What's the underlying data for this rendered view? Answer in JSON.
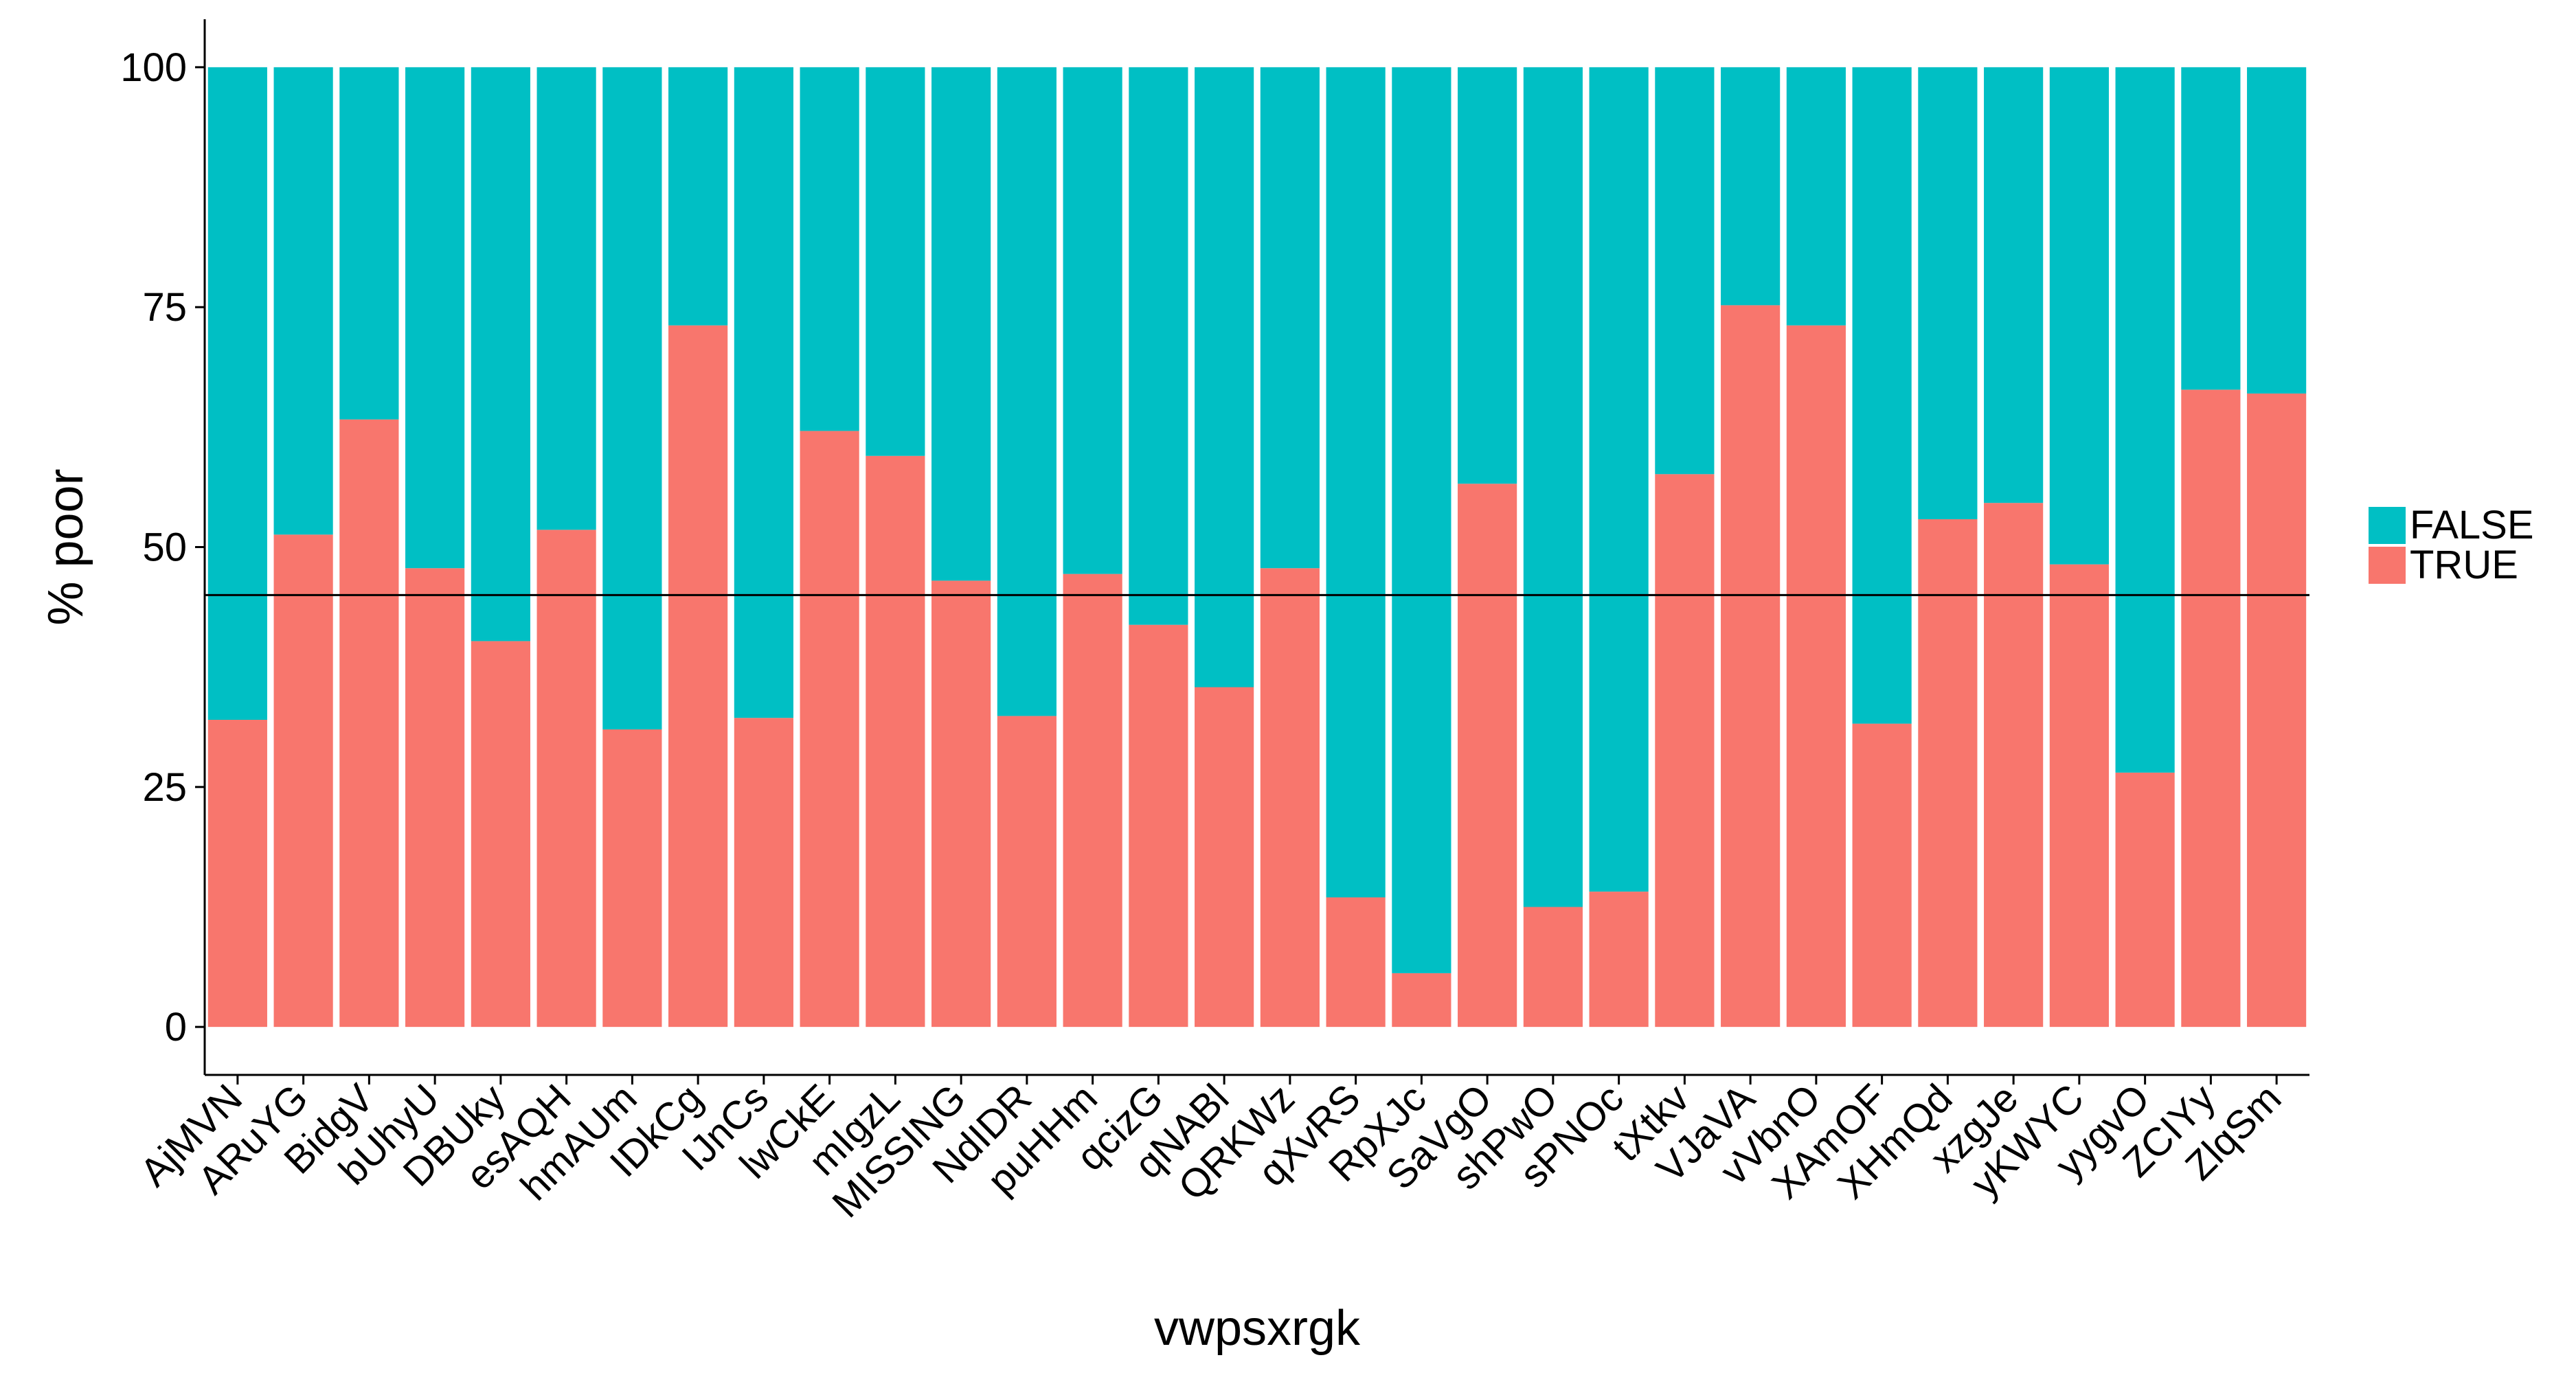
{
  "chart_data": {
    "type": "bar",
    "stacked": true,
    "title": "",
    "xlabel": "vwpsxrgk",
    "ylabel": "% poor",
    "ylim": [
      -5,
      105
    ],
    "yticks": [
      "0",
      "25",
      "50",
      "75",
      "100"
    ],
    "grid": false,
    "legend_position": "right",
    "reference_line": 45,
    "categories": [
      "AjMVN",
      "ARuYG",
      "BidgV",
      "bUhyU",
      "DBUky",
      "esAQH",
      "hmAUm",
      "IDkCg",
      "IJnCs",
      "lwCkE",
      "mIgzL",
      "MISSING",
      "NdIDR",
      "puHHm",
      "qcizG",
      "qNABl",
      "QRKWz",
      "qXvRS",
      "RpXJc",
      "SaVgO",
      "shPwO",
      "sPNOc",
      "tXtkv",
      "VJaVA",
      "vVbnO",
      "XAmOF",
      "XHmQd",
      "xzgJe",
      "yKWYC",
      "yygvO",
      "ZCIYy",
      "ZlqSm"
    ],
    "series": [
      {
        "name": "TRUE",
        "color": "#F8766D",
        "values": [
          32,
          51.3,
          63.3,
          47.8,
          40.2,
          51.8,
          31,
          73.1,
          32.2,
          62.1,
          59.5,
          46.5,
          32.4,
          47.2,
          41.9,
          35.4,
          47.8,
          13.5,
          5.6,
          56.6,
          12.5,
          14.1,
          57.6,
          75.2,
          73.1,
          31.6,
          52.9,
          54.6,
          48.2,
          26.5,
          66.4,
          66
        ]
      },
      {
        "name": "FALSE",
        "color": "#00BFC4",
        "values": [
          68,
          48.7,
          36.7,
          52.2,
          59.8,
          48.2,
          69,
          26.9,
          67.8,
          37.9,
          40.5,
          53.5,
          67.6,
          52.8,
          58.1,
          64.6,
          52.2,
          86.5,
          94.4,
          43.4,
          87.5,
          85.9,
          42.4,
          24.8,
          26.9,
          68.4,
          47.1,
          45.4,
          51.8,
          73.5,
          33.6,
          34
        ]
      }
    ],
    "legend": [
      "FALSE",
      "TRUE"
    ]
  }
}
